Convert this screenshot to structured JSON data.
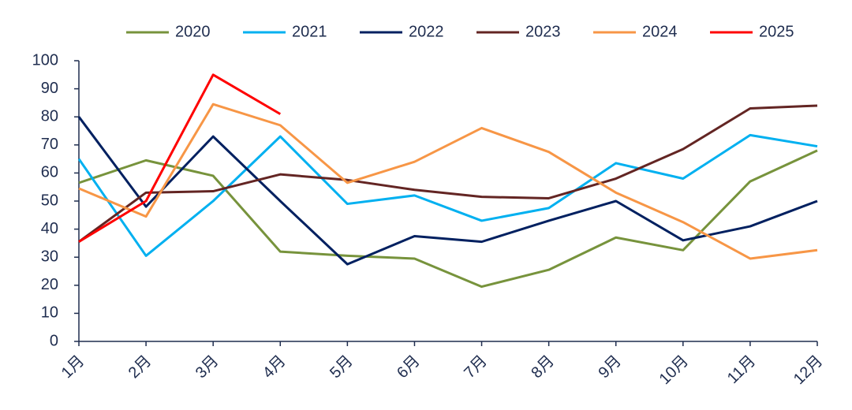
{
  "chart_data": {
    "type": "line",
    "categories": [
      "1月",
      "2月",
      "3月",
      "4月",
      "5月",
      "6月",
      "7月",
      "8月",
      "9月",
      "10月",
      "11月",
      "12月"
    ],
    "series": [
      {
        "name": "2020",
        "color": "#77933c",
        "values": [
          56.5,
          64.5,
          59,
          32,
          30.5,
          29.5,
          19.5,
          25.5,
          37,
          32.5,
          57,
          68
        ]
      },
      {
        "name": "2021",
        "color": "#00b0f0",
        "values": [
          65,
          30.5,
          50,
          73,
          49,
          52,
          43,
          47.5,
          63.5,
          58,
          73.5,
          69.5
        ]
      },
      {
        "name": "2022",
        "color": "#002060",
        "values": [
          80,
          48,
          73,
          50,
          27.5,
          37.5,
          35.5,
          43,
          50,
          36,
          41,
          50
        ]
      },
      {
        "name": "2023",
        "color": "#632523",
        "values": [
          35.5,
          53,
          53.5,
          59.5,
          57.5,
          54,
          51.5,
          51,
          58,
          68.5,
          83,
          84
        ]
      },
      {
        "name": "2024",
        "color": "#f79646",
        "values": [
          54.5,
          44.5,
          84.5,
          77,
          56.5,
          64,
          76,
          67.5,
          53,
          42.5,
          29.5,
          32.5
        ]
      },
      {
        "name": "2025",
        "color": "#ff0000",
        "values": [
          35.5,
          50,
          95,
          81,
          null,
          null,
          null,
          null,
          null,
          null,
          null,
          null
        ]
      }
    ],
    "ylim": [
      0,
      100
    ],
    "yticks": [
      0,
      10,
      20,
      30,
      40,
      50,
      60,
      70,
      80,
      90,
      100
    ],
    "grid": false,
    "legend": "top"
  }
}
